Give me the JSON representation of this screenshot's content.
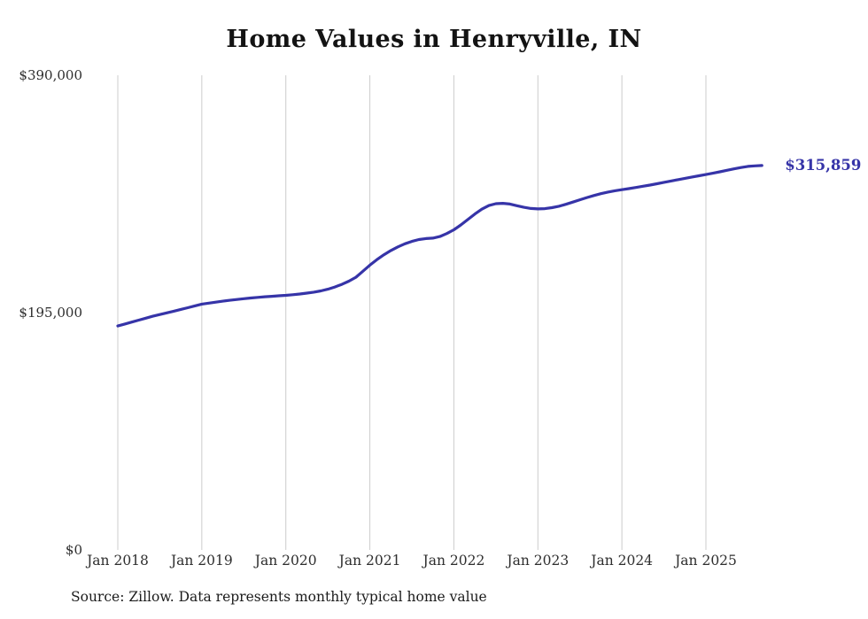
{
  "page": {
    "title": "Home Values in Henryville, IN",
    "source_note": "Source: Zillow. Data represents monthly typical home value"
  },
  "chart_data": {
    "type": "line",
    "title": "Home Values in Henryville, IN",
    "xlabel": "",
    "ylabel": "",
    "ylim": [
      0,
      390000
    ],
    "grid": "vertical-only",
    "line_color": "#3634a8",
    "grid_color": "#cccccc",
    "end_label": "$315,859",
    "end_value": 315859,
    "y_ticks": [
      0,
      195000,
      390000
    ],
    "y_tick_labels": [
      "$0",
      "$195,000",
      "$390,000"
    ],
    "x_tick_labels": [
      "Jan 2018",
      "Jan 2019",
      "Jan 2020",
      "Jan 2021",
      "Jan 2022",
      "Jan 2023",
      "Jan 2024",
      "Jan 2025"
    ],
    "source": "Source: Zillow. Data represents monthly typical home value",
    "x": [
      "2018-01",
      "2018-02",
      "2018-03",
      "2018-04",
      "2018-05",
      "2018-06",
      "2018-07",
      "2018-08",
      "2018-09",
      "2018-10",
      "2018-11",
      "2018-12",
      "2019-01",
      "2019-02",
      "2019-03",
      "2019-04",
      "2019-05",
      "2019-06",
      "2019-07",
      "2019-08",
      "2019-09",
      "2019-10",
      "2019-11",
      "2019-12",
      "2020-01",
      "2020-02",
      "2020-03",
      "2020-04",
      "2020-05",
      "2020-06",
      "2020-07",
      "2020-08",
      "2020-09",
      "2020-10",
      "2020-11",
      "2020-12",
      "2021-01",
      "2021-02",
      "2021-03",
      "2021-04",
      "2021-05",
      "2021-06",
      "2021-07",
      "2021-08",
      "2021-09",
      "2021-10",
      "2021-11",
      "2021-12",
      "2022-01",
      "2022-02",
      "2022-03",
      "2022-04",
      "2022-05",
      "2022-06",
      "2022-07",
      "2022-08",
      "2022-09",
      "2022-10",
      "2022-11",
      "2022-12",
      "2023-01",
      "2023-02",
      "2023-03",
      "2023-04",
      "2023-05",
      "2023-06",
      "2023-07",
      "2023-08",
      "2023-09",
      "2023-10",
      "2023-11",
      "2023-12",
      "2024-01",
      "2024-02",
      "2024-03",
      "2024-04",
      "2024-05",
      "2024-06",
      "2024-07",
      "2024-08",
      "2024-09",
      "2024-10",
      "2024-11",
      "2024-12",
      "2025-01",
      "2025-02",
      "2025-03",
      "2025-04",
      "2025-05",
      "2025-06",
      "2025-07",
      "2025-08",
      "2025-09"
    ],
    "values": [
      184000,
      185600,
      187200,
      188800,
      190400,
      192000,
      193400,
      194800,
      196200,
      197600,
      199000,
      200500,
      202000,
      202800,
      203600,
      204400,
      205100,
      205800,
      206400,
      207000,
      207500,
      208000,
      208400,
      208800,
      209200,
      209700,
      210300,
      211000,
      211800,
      212800,
      214200,
      216000,
      218200,
      220800,
      224000,
      229000,
      234000,
      238500,
      242500,
      246000,
      249000,
      251500,
      253500,
      255000,
      255800,
      256200,
      257500,
      260000,
      263000,
      267000,
      271500,
      276000,
      280000,
      283000,
      284500,
      284800,
      284200,
      282800,
      281500,
      280600,
      280200,
      280400,
      281200,
      282400,
      284000,
      285800,
      287700,
      289500,
      291200,
      292700,
      294000,
      295100,
      296000,
      296900,
      297800,
      298800,
      299800,
      300900,
      302000,
      303100,
      304200,
      305300,
      306400,
      307400,
      308400,
      309500,
      310700,
      311900,
      313100,
      314200,
      315100,
      315600,
      315859
    ]
  }
}
